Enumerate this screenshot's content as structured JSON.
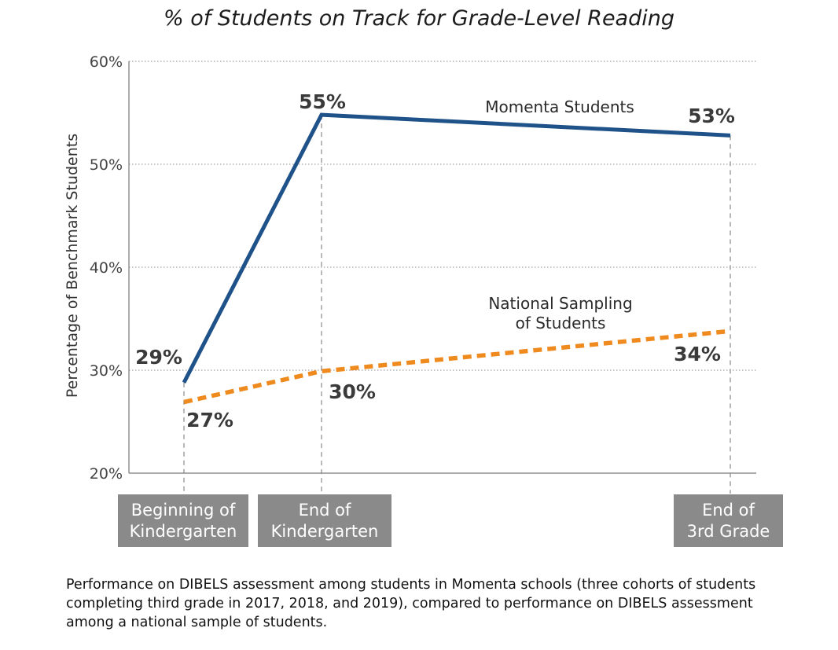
{
  "chart_data": {
    "type": "line",
    "title": "% of Students on Track for Grade-Level Reading",
    "ylabel": "Percentage of Benchmark Students",
    "xlabel": "",
    "ylim": [
      20,
      60
    ],
    "yticks": [
      "20%",
      "30%",
      "40%",
      "50%",
      "60%"
    ],
    "ytick_values": [
      20,
      30,
      40,
      50,
      60
    ],
    "grid": "horizontal dotted",
    "categories": [
      "Beginning of Kindergarten",
      "End of Kindergarten",
      "End of 3rd Grade"
    ],
    "category_labels": [
      "Beginning of\nKindergarten",
      "End of\nKindergarten",
      "End of\n3rd Grade"
    ],
    "x_positions": [
      0,
      1,
      4
    ],
    "series": [
      {
        "name": "Momenta Students",
        "values": [
          29,
          55,
          53
        ],
        "plotted": [
          28.8,
          54.8,
          52.8
        ],
        "labels": [
          "29%",
          "55%",
          "53%"
        ],
        "color": "#1f5289",
        "style": "solid"
      },
      {
        "name": "National Sampling\nof Students",
        "values": [
          27,
          30,
          34
        ],
        "plotted": [
          26.9,
          29.9,
          33.8
        ],
        "labels": [
          "27%",
          "30%",
          "34%"
        ],
        "color": "#ef8a1f",
        "style": "dashed"
      }
    ]
  },
  "caption": "Performance on DIBELS assessment among students in Momenta schools (three cohorts of students completing third grade in 2017, 2018, and 2019), compared to performance on DIBELS assessment among a national sample of students."
}
